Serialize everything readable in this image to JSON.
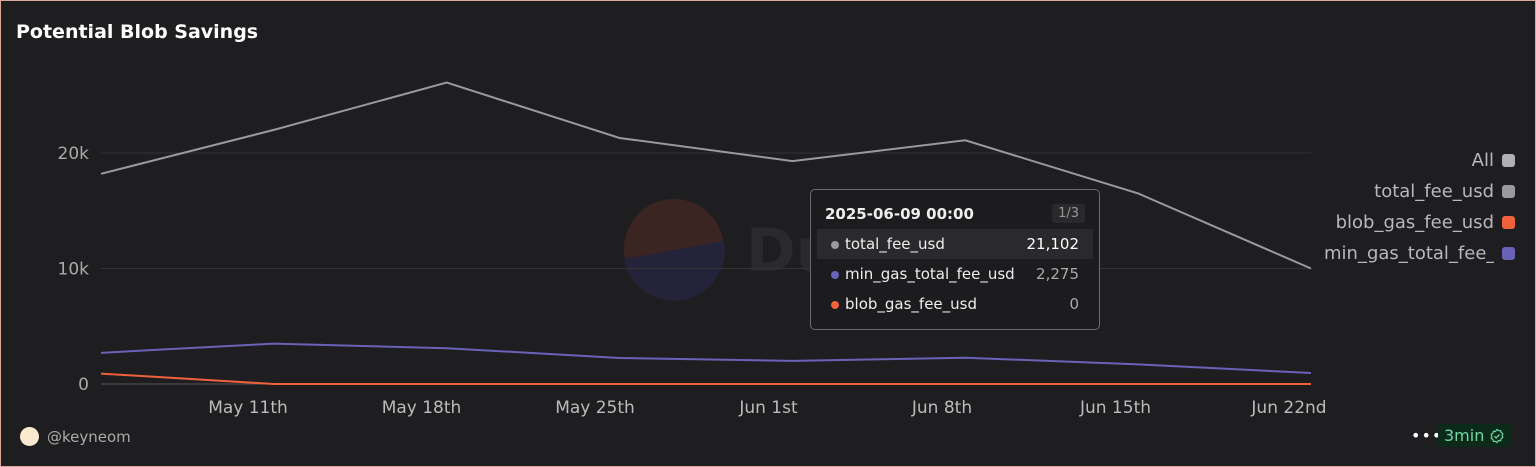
{
  "title": "Potential Blob Savings",
  "legend": [
    {
      "label": "All",
      "color": "#b0b0b4"
    },
    {
      "label": "total_fee_usd",
      "color": "#9a9a9e"
    },
    {
      "label": "blob_gas_fee_usd",
      "color": "#f0603a"
    },
    {
      "label": "min_gas_total_fee_usd",
      "color": "#6a62b8"
    }
  ],
  "tooltip": {
    "date": "2025-06-09 00:00",
    "page": "1/3",
    "rows": [
      {
        "name": "total_fee_usd",
        "value": "21,102",
        "color": "#9a9a9e"
      },
      {
        "name": "min_gas_total_fee_usd",
        "value": "2,275",
        "color": "#6a62b8"
      },
      {
        "name": "blob_gas_fee_usd",
        "value": "0",
        "color": "#f0603a"
      }
    ]
  },
  "footer": {
    "user": "@keyneom",
    "more": "•••",
    "badge": "3min"
  },
  "chart_data": {
    "type": "line",
    "title": "Potential Blob Savings",
    "x": [
      "2025-05-05",
      "2025-05-12",
      "2025-05-19",
      "2025-05-26",
      "2025-06-02",
      "2025-06-09",
      "2025-06-16",
      "2025-06-23"
    ],
    "xticks": [
      "May 11th",
      "May 18th",
      "May 25th",
      "Jun 1st",
      "Jun 8th",
      "Jun 15th",
      "Jun 22nd"
    ],
    "yticks": [
      {
        "v": 0,
        "label": "0"
      },
      {
        "v": 10000,
        "label": "10k"
      },
      {
        "v": 20000,
        "label": "20k"
      }
    ],
    "ylim": [
      0,
      33000
    ],
    "grid": true,
    "legend_position": "right",
    "series": [
      {
        "name": "total_fee_usd",
        "color": "#9a9a9e",
        "values": [
          18200,
          22000,
          26100,
          21300,
          19300,
          21102,
          16500,
          10000
        ]
      },
      {
        "name": "min_gas_total_fee_usd",
        "color": "#6a62b8",
        "values": [
          2700,
          3500,
          3100,
          2250,
          2000,
          2275,
          1700,
          950
        ]
      },
      {
        "name": "blob_gas_fee_usd",
        "color": "#f0603a",
        "values": [
          900,
          0,
          0,
          0,
          0,
          0,
          0,
          0
        ]
      }
    ]
  }
}
